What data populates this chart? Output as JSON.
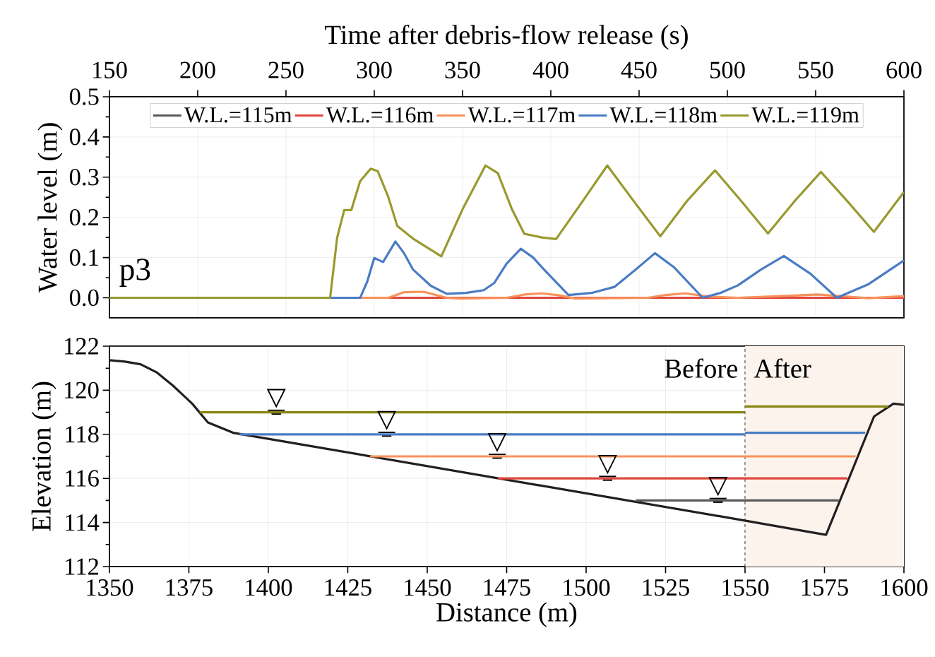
{
  "chart_data": [
    {
      "type": "line",
      "xlabel": "Time after debris-flow release (s)",
      "ylabel": "Water level (m)",
      "xlim": [
        150,
        600
      ],
      "xticks": [
        150,
        200,
        250,
        300,
        350,
        400,
        450,
        500,
        550,
        600
      ],
      "ylim": [
        -0.05,
        0.5
      ],
      "yticks": [
        {
          "value": 0,
          "label": "0.0"
        },
        0.1,
        0.2,
        0.3,
        0.4,
        0.5
      ],
      "grid": true,
      "legend": "top",
      "annotations": [
        "p3"
      ],
      "series": [
        {
          "name": "W.L.=115m",
          "color": "#5a5a5a",
          "values": [
            null,
            null
          ]
        },
        {
          "name": "W.L.=116m",
          "color": "#e0463c",
          "x": [
            150,
            600
          ],
          "values": [
            0,
            0
          ]
        },
        {
          "name": "W.L.=117m",
          "color": "#f8925a",
          "x": [
            150,
            308,
            317,
            328,
            341,
            349,
            375,
            385,
            395,
            405,
            414,
            455,
            465,
            476,
            490,
            506,
            540,
            551,
            565,
            580,
            600
          ],
          "values": [
            0,
            0,
            0.014,
            0.015,
            0,
            -0.002,
            0,
            0.008,
            0.011,
            0.006,
            -0.002,
            0,
            0.007,
            0.011,
            0.003,
            0,
            0.006,
            0.008,
            0.004,
            -0.001,
            0.004
          ]
        },
        {
          "name": "W.L.=118m",
          "color": "#4a7cc4",
          "x": [
            150,
            292,
            296,
            300,
            305,
            312,
            317,
            322,
            332,
            341,
            352,
            362,
            368,
            375,
            383,
            390,
            396,
            410,
            423,
            436,
            448,
            459,
            470,
            486,
            496,
            506,
            519,
            532,
            547,
            562,
            580,
            600
          ],
          "values": [
            0,
            0,
            0.04,
            0.099,
            0.089,
            0.14,
            0.11,
            0.07,
            0.03,
            0.01,
            0.012,
            0.019,
            0.037,
            0.085,
            0.122,
            0.1,
            0.071,
            0.007,
            0.012,
            0.027,
            0.07,
            0.111,
            0.075,
            0.0,
            0.012,
            0.031,
            0.07,
            0.104,
            0.06,
            0.0,
            0.034,
            0.093
          ]
        },
        {
          "name": "W.L.=119m",
          "color": "#999a2e",
          "x": [
            150,
            268,
            275,
            279,
            283,
            287,
            292,
            298,
            302,
            308,
            313,
            322,
            330,
            338,
            350,
            363,
            370,
            378,
            385,
            395,
            403,
            418,
            432,
            447,
            462,
            477,
            493,
            508,
            523,
            538,
            553,
            568,
            583,
            600
          ],
          "values": [
            0,
            0,
            0,
            0.15,
            0.218,
            0.218,
            0.29,
            0.321,
            0.315,
            0.25,
            0.179,
            0.147,
            0.125,
            0.103,
            0.22,
            0.329,
            0.31,
            0.22,
            0.159,
            0.15,
            0.146,
            0.24,
            0.329,
            0.24,
            0.153,
            0.24,
            0.317,
            0.24,
            0.16,
            0.24,
            0.313,
            0.24,
            0.164,
            0.263
          ]
        }
      ]
    },
    {
      "type": "line",
      "xlabel": "Distance (m)",
      "ylabel": "Elevation (m)",
      "xlim": [
        1350,
        1600
      ],
      "xticks": [
        1350,
        1375,
        1400,
        1425,
        1450,
        1475,
        1500,
        1525,
        1550,
        1575,
        1600
      ],
      "ylim": [
        112,
        122
      ],
      "yticks": [
        112,
        114,
        116,
        118,
        120,
        122
      ],
      "grid": true,
      "ref_lines": [
        {
          "axis": "x",
          "value": 1550,
          "label": "Before",
          "color": "#000000",
          "line_style": "dashed"
        }
      ],
      "bands": [
        {
          "axis": "x",
          "from": 1550,
          "to": 1600,
          "label": "After",
          "color": "#fdf3ed"
        }
      ],
      "series": [
        {
          "color": "#231f20",
          "x": [
            1350,
            1354.9,
            1359.8,
            1365,
            1369.9,
            1376,
            1381,
            1388.9,
            1550.2,
            1575.5,
            1590.6,
            1596.7,
            1600
          ],
          "values": [
            121.36,
            121.3,
            121.18,
            120.8,
            120.22,
            119.4,
            118.54,
            118.07,
            114.08,
            113.44,
            118.81,
            119.39,
            119.34
          ]
        },
        {
          "color": "#868611",
          "x": [
            1378.4,
            1550
          ],
          "values": [
            119,
            119
          ]
        },
        {
          "color": "#868611",
          "x": [
            1550,
            1595
          ],
          "values": [
            119.26,
            119.26
          ]
        },
        {
          "color": "#4a7cc4",
          "x": [
            1390.9,
            1550
          ],
          "values": [
            118,
            118
          ]
        },
        {
          "color": "#4a7cc4",
          "x": [
            1550,
            1587.8
          ],
          "values": [
            118.07,
            118.07
          ]
        },
        {
          "color": "#f8925a",
          "x": [
            1432,
            1584.8
          ],
          "values": [
            117,
            117
          ]
        },
        {
          "color": "#e0463c",
          "x": [
            1472.2,
            1582.2
          ],
          "values": [
            116,
            116
          ]
        },
        {
          "color": "#5a5a5a",
          "x": [
            1515.6,
            1579.5
          ],
          "values": [
            115,
            115
          ]
        }
      ]
    }
  ]
}
